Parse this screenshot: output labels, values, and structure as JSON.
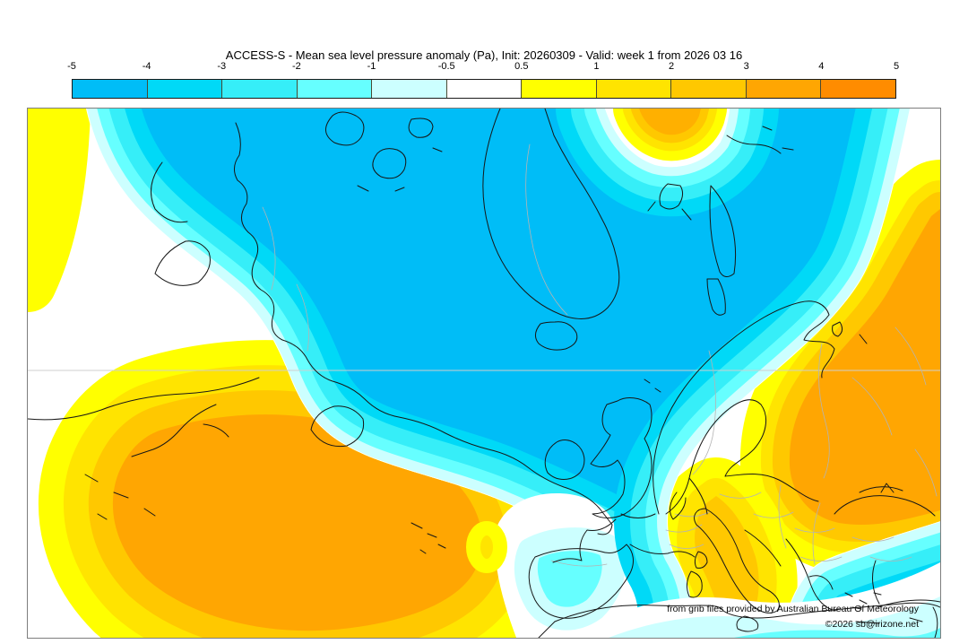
{
  "header": {
    "title": "ACCESS-S - Mean sea level pressure anomaly (Pa), Init: 20260309 - Valid: week 1 from 2026 03 16"
  },
  "colorbar": {
    "tick_labels": [
      "-5",
      "-4",
      "-3",
      "-2",
      "-1",
      "-0.5",
      "0.5",
      "1",
      "2",
      "3",
      "4",
      "5"
    ],
    "segment_colors": [
      "#00bdf7",
      "#00d9f7",
      "#36eef8",
      "#66ffff",
      "#ccffff",
      "#ffffff",
      "#ffff00",
      "#ffe400",
      "#ffc800",
      "#ffa602",
      "#ff8c00"
    ],
    "units": "Pa"
  },
  "map": {
    "attribution": "from grib files provided by Australian Bureau Of Meteorology",
    "copyright": "©2026 sb@irizone.net"
  },
  "chart_data": {
    "type": "heatmap",
    "title": "ACCESS-S - Mean sea level pressure anomaly (Pa), Init: 20260309 - Valid: week 1 from 2026 03 16",
    "model": "ACCESS-S",
    "variable": "Mean sea level pressure anomaly",
    "units": "Pa",
    "init": "20260309",
    "valid": "week 1 from 2026 03 16",
    "colorbar_ticks": [
      -5,
      -4,
      -3,
      -2,
      -1,
      -0.5,
      0.5,
      1,
      2,
      3,
      4,
      5
    ],
    "colorbar_colors": [
      "#00bdf7",
      "#00d9f7",
      "#36eef8",
      "#66ffff",
      "#ccffff",
      "#ffffff",
      "#ffff00",
      "#ffe400",
      "#ffc800",
      "#ffa602",
      "#ff8c00"
    ],
    "legend_position": "top"
  }
}
